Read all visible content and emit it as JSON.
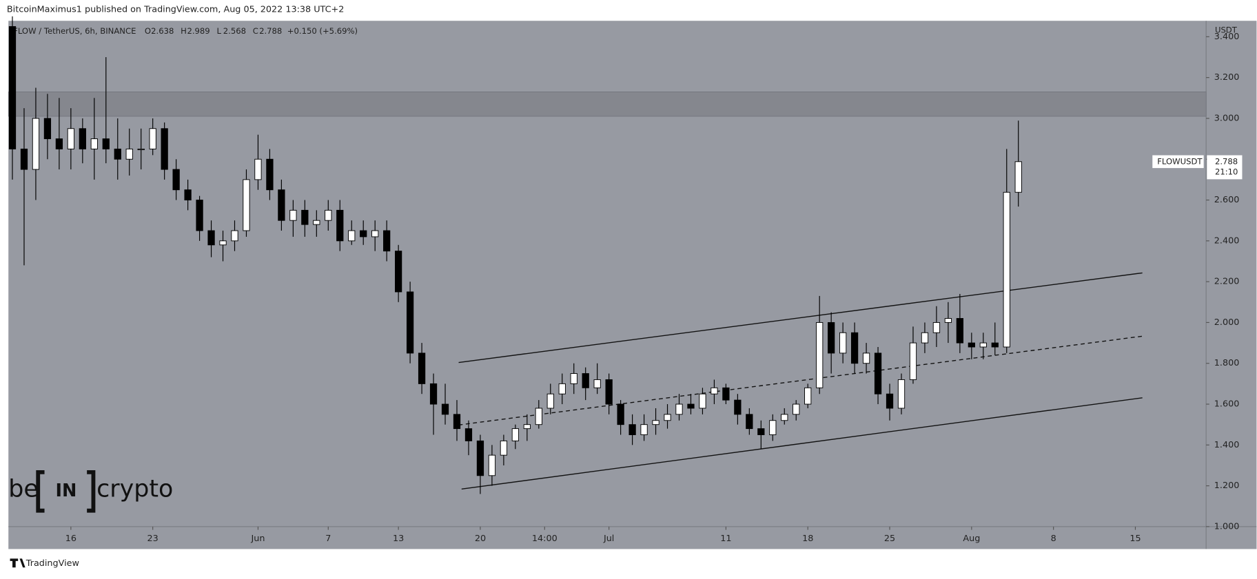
{
  "header": {
    "published": "BitcoinMaximus1 published on TradingView.com, Aug 05, 2022 13:38 UTC+2"
  },
  "footer": {
    "brand": "TradingView"
  },
  "watermark": {
    "left": "be",
    "box": "IN",
    "right": "crypto"
  },
  "chart_data": {
    "type": "candlestick",
    "symbol": "FLOW / TetherUS, 6h, BINANCE",
    "ohlc_keys": [
      "O",
      "H",
      "L",
      "C"
    ],
    "change_label": "+0.150 (+5.69%)",
    "axis_unit": "USDT",
    "price_tag": {
      "name": "FLOWUSDT",
      "countdown": "21:10"
    },
    "x": [
      11,
      12,
      13,
      14,
      15,
      16,
      17,
      18,
      19,
      20,
      21,
      22,
      23,
      24,
      25,
      26,
      27,
      28,
      29,
      30,
      31,
      32,
      33,
      34,
      35,
      36,
      37,
      38,
      39,
      40,
      41,
      42,
      43,
      44,
      45,
      46,
      47,
      48,
      49,
      50,
      51,
      52,
      53,
      54,
      55,
      56,
      57,
      58,
      59,
      60,
      61,
      62,
      63,
      64,
      65,
      66,
      67,
      68,
      69,
      70,
      71,
      72,
      73,
      74,
      75,
      76,
      77,
      78,
      79,
      80,
      81,
      82,
      83,
      84,
      85,
      86,
      87,
      88,
      89,
      90,
      91,
      92,
      93,
      94,
      95,
      96,
      97
    ],
    "open": [
      3.45,
      2.85,
      2.75,
      3.0,
      2.9,
      2.85,
      2.95,
      2.85,
      2.9,
      2.85,
      2.8,
      2.85,
      2.85,
      2.95,
      2.75,
      2.65,
      2.6,
      2.45,
      2.38,
      2.4,
      2.45,
      2.7,
      2.8,
      2.65,
      2.5,
      2.55,
      2.48,
      2.5,
      2.55,
      2.4,
      2.45,
      2.42,
      2.45,
      2.35,
      2.15,
      1.85,
      1.7,
      1.6,
      1.55,
      1.48,
      1.42,
      1.25,
      1.35,
      1.42,
      1.48,
      1.5,
      1.58,
      1.65,
      1.7,
      1.75,
      1.68,
      1.72,
      1.6,
      1.5,
      1.45,
      1.5,
      1.52,
      1.55,
      1.6,
      1.58,
      1.65,
      1.68,
      1.62,
      1.55,
      1.48,
      1.45,
      1.52,
      1.55,
      1.6,
      1.68,
      2.0,
      1.85,
      1.95,
      1.8,
      1.85,
      1.65,
      1.58,
      1.72,
      1.9,
      1.95,
      2.0,
      2.02,
      1.9,
      1.88,
      1.9,
      1.88,
      2.638
    ],
    "high": [
      3.5,
      3.05,
      3.15,
      3.12,
      3.1,
      3.05,
      3.0,
      3.1,
      3.3,
      3.0,
      2.95,
      2.95,
      3.0,
      2.98,
      2.8,
      2.7,
      2.62,
      2.5,
      2.45,
      2.5,
      2.75,
      2.92,
      2.85,
      2.7,
      2.6,
      2.6,
      2.55,
      2.6,
      2.6,
      2.5,
      2.5,
      2.5,
      2.5,
      2.38,
      2.2,
      1.9,
      1.75,
      1.7,
      1.62,
      1.52,
      1.45,
      1.4,
      1.45,
      1.5,
      1.55,
      1.62,
      1.7,
      1.75,
      1.8,
      1.78,
      1.8,
      1.75,
      1.62,
      1.55,
      1.55,
      1.58,
      1.6,
      1.65,
      1.65,
      1.68,
      1.72,
      1.7,
      1.65,
      1.58,
      1.52,
      1.55,
      1.58,
      1.62,
      1.7,
      2.13,
      2.05,
      2.0,
      2.0,
      1.9,
      1.88,
      1.7,
      1.75,
      1.98,
      2.0,
      2.08,
      2.1,
      2.14,
      1.95,
      1.95,
      2.0,
      2.85,
      2.989
    ],
    "low": [
      2.7,
      2.28,
      2.6,
      2.8,
      2.75,
      2.75,
      2.78,
      2.7,
      2.78,
      2.7,
      2.72,
      2.75,
      2.82,
      2.7,
      2.6,
      2.55,
      2.4,
      2.32,
      2.3,
      2.35,
      2.42,
      2.65,
      2.6,
      2.45,
      2.42,
      2.42,
      2.42,
      2.45,
      2.35,
      2.38,
      2.38,
      2.35,
      2.3,
      2.1,
      1.8,
      1.65,
      1.45,
      1.5,
      1.42,
      1.35,
      1.16,
      1.2,
      1.3,
      1.38,
      1.42,
      1.48,
      1.55,
      1.6,
      1.65,
      1.62,
      1.65,
      1.55,
      1.45,
      1.4,
      1.42,
      1.45,
      1.48,
      1.52,
      1.55,
      1.55,
      1.6,
      1.6,
      1.5,
      1.45,
      1.38,
      1.42,
      1.5,
      1.52,
      1.58,
      1.65,
      1.75,
      1.8,
      1.75,
      1.75,
      1.6,
      1.52,
      1.55,
      1.7,
      1.85,
      1.88,
      1.9,
      1.85,
      1.82,
      1.82,
      1.84,
      1.85,
      2.568
    ],
    "close": [
      2.85,
      2.75,
      3.0,
      2.9,
      2.85,
      2.95,
      2.85,
      2.9,
      2.85,
      2.8,
      2.85,
      2.85,
      2.95,
      2.75,
      2.65,
      2.6,
      2.45,
      2.38,
      2.4,
      2.45,
      2.7,
      2.8,
      2.65,
      2.5,
      2.55,
      2.48,
      2.5,
      2.55,
      2.4,
      2.45,
      2.42,
      2.45,
      2.35,
      2.15,
      1.85,
      1.7,
      1.6,
      1.55,
      1.48,
      1.42,
      1.25,
      1.35,
      1.42,
      1.48,
      1.5,
      1.58,
      1.65,
      1.7,
      1.75,
      1.68,
      1.72,
      1.6,
      1.5,
      1.45,
      1.5,
      1.52,
      1.55,
      1.6,
      1.58,
      1.65,
      1.68,
      1.62,
      1.55,
      1.48,
      1.45,
      1.52,
      1.55,
      1.6,
      1.68,
      2.0,
      1.85,
      1.95,
      1.8,
      1.85,
      1.65,
      1.58,
      1.72,
      1.9,
      1.95,
      2.0,
      2.02,
      1.9,
      1.88,
      1.9,
      1.88,
      2.638,
      2.788
    ],
    "up_color": "#ffffff",
    "down_color": "#000000",
    "background": "#979aa2",
    "xlim": [
      10.66,
      113.05
    ],
    "xticks": [
      {
        "value": 16,
        "label": "16"
      },
      {
        "value": 23,
        "label": "23"
      },
      {
        "value": 32,
        "label": "Jun"
      },
      {
        "value": 38,
        "label": "7"
      },
      {
        "value": 44,
        "label": "13"
      },
      {
        "value": 51,
        "label": "20"
      },
      {
        "value": 56.5,
        "label": "14:00"
      },
      {
        "value": 62,
        "label": "Jul"
      },
      {
        "value": 72,
        "label": "11"
      },
      {
        "value": 79,
        "label": "18"
      },
      {
        "value": 86,
        "label": "25"
      },
      {
        "value": 93,
        "label": "Aug"
      },
      {
        "value": 100,
        "label": "8"
      },
      {
        "value": 107,
        "label": "15"
      }
    ],
    "ylim": [
      1.0,
      3.478
    ],
    "yticks": [
      {
        "value": 1.0,
        "label": "1.000"
      },
      {
        "value": 1.2,
        "label": "1.200"
      },
      {
        "value": 1.4,
        "label": "1.400"
      },
      {
        "value": 1.6,
        "label": "1.600"
      },
      {
        "value": 1.8,
        "label": "1.800"
      },
      {
        "value": 2.0,
        "label": "2.000"
      },
      {
        "value": 2.2,
        "label": "2.200"
      },
      {
        "value": 2.4,
        "label": "2.400"
      },
      {
        "value": 2.6,
        "label": "2.600"
      },
      {
        "value": 2.8,
        "label": "2.800"
      },
      {
        "value": 3.0,
        "label": "3.000"
      },
      {
        "value": 3.2,
        "label": "3.200"
      },
      {
        "value": 3.4,
        "label": "3.400"
      }
    ],
    "zones": [
      {
        "y": [
          3.01,
          3.13
        ],
        "color": "#85878e"
      }
    ],
    "lines": [
      {
        "x": [
          49.15,
          107.6
        ],
        "y": [
          1.804,
          2.243
        ],
        "style": "solid"
      },
      {
        "x": [
          49.15,
          107.6
        ],
        "y": [
          1.498,
          1.933
        ],
        "style": "dashed"
      },
      {
        "x": [
          49.4,
          107.6
        ],
        "y": [
          1.184,
          1.631
        ],
        "style": "solid"
      }
    ]
  }
}
